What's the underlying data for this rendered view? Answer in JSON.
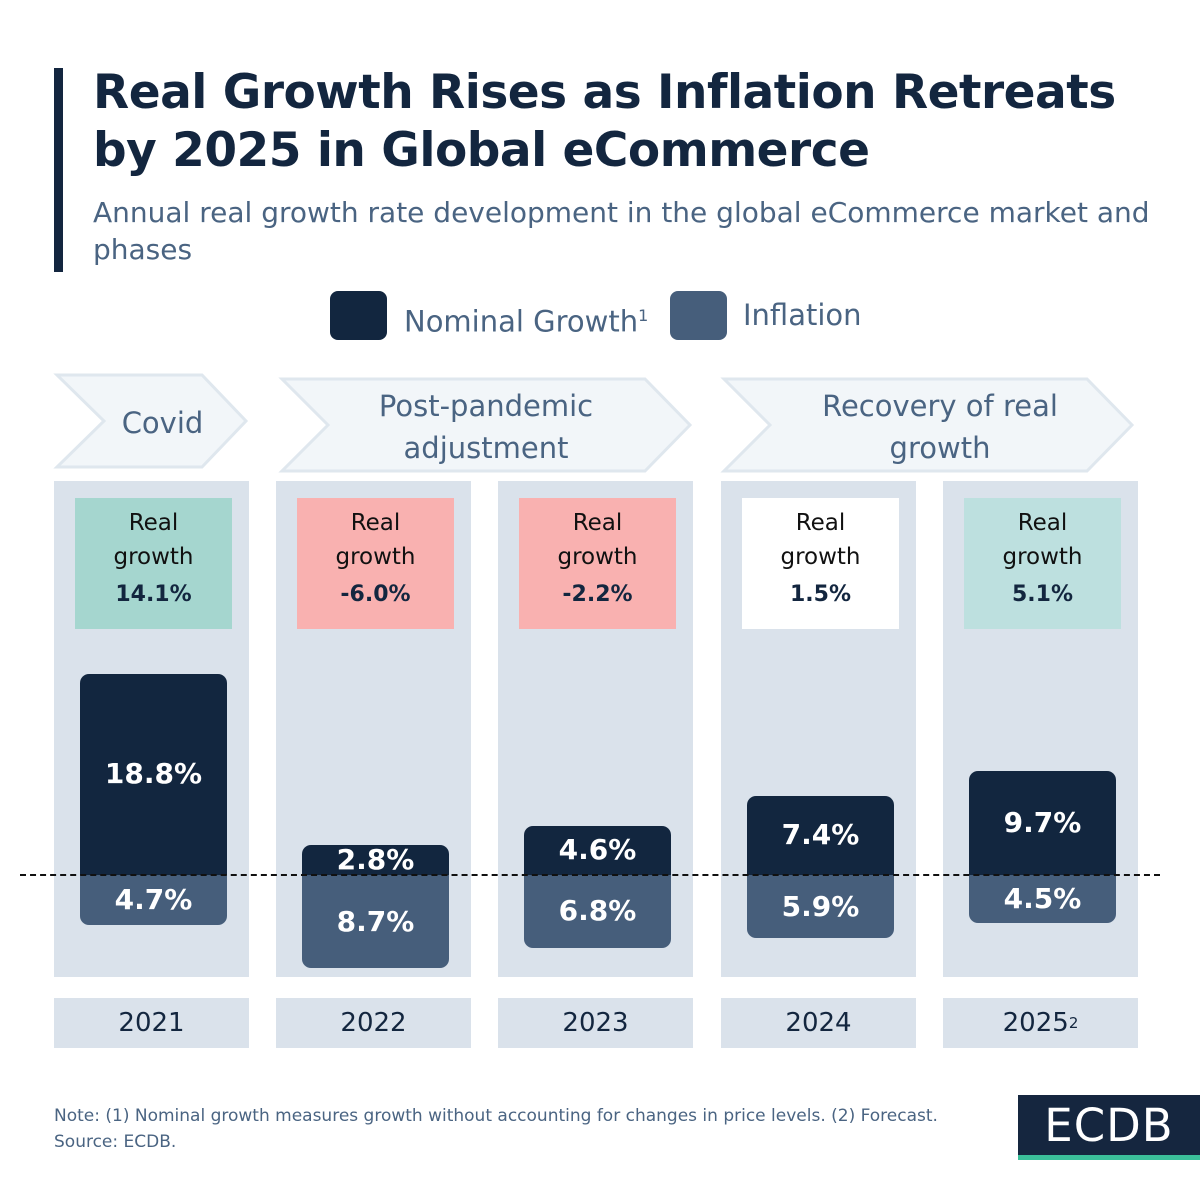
{
  "title": "Real Growth Rises as Inflation Retreats by 2025 in Global eCommerce",
  "subtitle": "Annual real growth rate development in the global eCommerce market and phases",
  "colors": {
    "nominal": "#12263f",
    "inflation": "#465e7b",
    "column_bg": "#dae2eb",
    "phase_bg": "#f2f6f9",
    "phase_border": "#dfe7ee"
  },
  "legend": [
    {
      "label": "Nominal Growth",
      "sup": "1",
      "color": "#12263f"
    },
    {
      "label": "Inflation",
      "sup": "",
      "color": "#465e7b"
    }
  ],
  "phases": [
    {
      "label": "Covid"
    },
    {
      "label": "Post-pandemic adjustment"
    },
    {
      "label": "Recovery of real growth"
    }
  ],
  "real_growth_label": "Real growth",
  "chart_data": {
    "type": "bar",
    "stacked": "diverging",
    "categories": [
      "2021",
      "2022",
      "2023",
      "2024",
      "2025"
    ],
    "category_sups": [
      "",
      "",
      "",
      "",
      "2"
    ],
    "series": [
      {
        "name": "Nominal Growth",
        "values": [
          18.8,
          2.8,
          4.6,
          7.4,
          9.7
        ],
        "labels": [
          "18.8%",
          "2.8%",
          "4.6%",
          "7.4%",
          "9.7%"
        ]
      },
      {
        "name": "Inflation",
        "values": [
          4.7,
          8.7,
          6.8,
          5.9,
          4.5
        ],
        "labels": [
          "4.7%",
          "8.7%",
          "6.8%",
          "5.9%",
          "4.5%"
        ]
      }
    ],
    "real_growth": {
      "values": [
        14.1,
        -6.0,
        -2.2,
        1.5,
        5.1
      ],
      "labels": [
        "14.1%",
        "-6.0%",
        "-2.2%",
        "1.5%",
        "5.1%"
      ],
      "colors": [
        "#a5d6cf",
        "#f9b1b0",
        "#f9b1b0",
        "#ffffff",
        "#bde0df"
      ]
    }
  },
  "note": "Note: (1) Nominal growth measures growth without accounting for changes in price levels. (2) Forecast.",
  "source": "Source: ECDB.",
  "logo": "ECDB"
}
